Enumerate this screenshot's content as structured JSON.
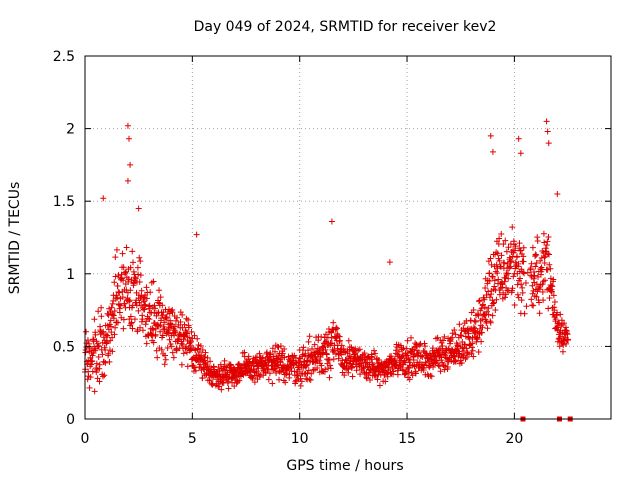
{
  "chart_data": {
    "type": "scatter",
    "title": "Day 049 of 2024, SRMTID for receiver kev2",
    "xlabel": "GPS time / hours",
    "ylabel": "SRMTID / TECUs",
    "xlim": [
      0,
      24.5
    ],
    "ylim": [
      0,
      2.5
    ],
    "xticks": [
      0,
      5,
      10,
      15,
      20
    ],
    "xtick_labels": [
      "0",
      "5",
      "10",
      "15",
      "20"
    ],
    "yticks": [
      0,
      0.5,
      1,
      1.5,
      2,
      2.5
    ],
    "ytick_labels": [
      "0",
      "0.5",
      "1",
      "1.5",
      "2",
      "2.5"
    ],
    "grid": true,
    "marker": "+",
    "color": "#e00000",
    "series": [
      {
        "name": "kev2",
        "envelope": {
          "x": [
            0.0,
            0.5,
            1.0,
            1.5,
            2.0,
            2.5,
            3.0,
            3.5,
            4.0,
            4.5,
            5.0,
            5.5,
            6.0,
            7.0,
            8.0,
            9.0,
            10.0,
            11.0,
            11.5,
            12.0,
            13.0,
            14.0,
            14.5,
            15.0,
            16.0,
            17.0,
            17.5,
            18.0,
            18.5,
            19.0,
            19.5,
            20.0,
            20.5,
            21.0,
            21.5,
            22.0,
            22.5
          ],
          "mean": [
            0.42,
            0.45,
            0.55,
            0.85,
            0.9,
            0.85,
            0.7,
            0.65,
            0.62,
            0.55,
            0.48,
            0.38,
            0.3,
            0.32,
            0.36,
            0.38,
            0.36,
            0.45,
            0.55,
            0.42,
            0.38,
            0.33,
            0.42,
            0.42,
            0.4,
            0.48,
            0.5,
            0.55,
            0.7,
            0.95,
            1.0,
            1.1,
            0.95,
            0.95,
            1.1,
            0.65,
            0.55
          ],
          "spread": [
            0.3,
            0.35,
            0.35,
            0.4,
            0.45,
            0.4,
            0.35,
            0.3,
            0.3,
            0.25,
            0.2,
            0.15,
            0.12,
            0.14,
            0.15,
            0.17,
            0.17,
            0.25,
            0.3,
            0.17,
            0.14,
            0.12,
            0.2,
            0.18,
            0.16,
            0.2,
            0.22,
            0.25,
            0.3,
            0.4,
            0.4,
            0.4,
            0.35,
            0.35,
            0.4,
            0.2,
            0.15
          ]
        },
        "outliers": [
          {
            "x": 2.0,
            "y": 2.02
          },
          {
            "x": 2.05,
            "y": 1.93
          },
          {
            "x": 2.1,
            "y": 1.75
          },
          {
            "x": 2.0,
            "y": 1.64
          },
          {
            "x": 0.85,
            "y": 1.52
          },
          {
            "x": 2.5,
            "y": 1.45
          },
          {
            "x": 5.2,
            "y": 1.27
          },
          {
            "x": 11.5,
            "y": 1.36
          },
          {
            "x": 14.2,
            "y": 1.08
          },
          {
            "x": 18.9,
            "y": 1.95
          },
          {
            "x": 19.0,
            "y": 1.84
          },
          {
            "x": 20.2,
            "y": 1.93
          },
          {
            "x": 20.3,
            "y": 1.83
          },
          {
            "x": 21.5,
            "y": 2.05
          },
          {
            "x": 21.55,
            "y": 1.98
          },
          {
            "x": 21.6,
            "y": 1.9
          },
          {
            "x": 22.0,
            "y": 1.55
          }
        ],
        "zero_points": [
          {
            "x": 20.4,
            "y": 0.0
          },
          {
            "x": 22.1,
            "y": 0.0
          },
          {
            "x": 22.6,
            "y": 0.0
          }
        ]
      }
    ]
  }
}
